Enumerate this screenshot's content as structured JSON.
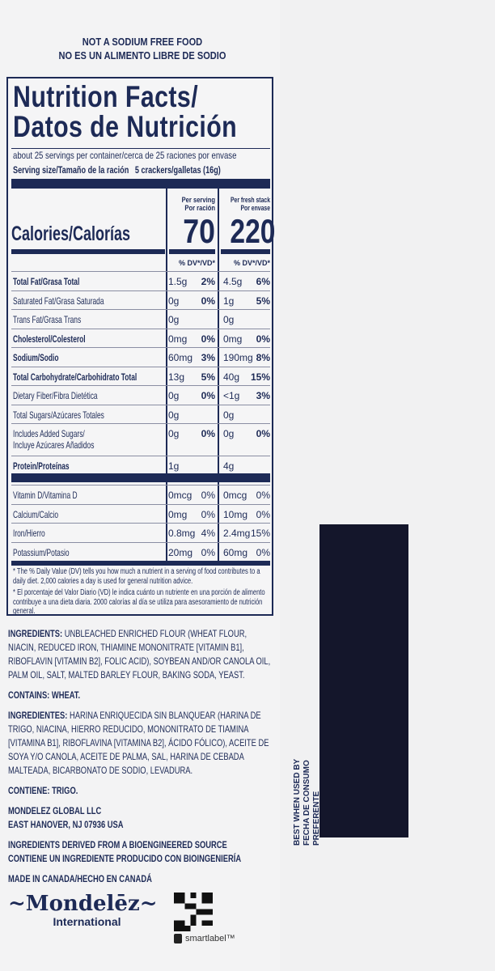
{
  "header": {
    "line1": "NOT A SODIUM FREE FOOD",
    "line2": "NO ES UN ALIMENTO LIBRE DE SODIO"
  },
  "label": {
    "title1": "Nutrition Facts/",
    "title2": "Datos de Nutrición",
    "servings": "about 25 servings per container/cerca de 25 raciones por envase",
    "serving_size_label": "Serving size/Tamaño de la ración",
    "serving_size_value": "5 crackers/galletas (16g)",
    "col1_head": "Per serving",
    "col1_head2": "Por ración",
    "col2_head": "Per fresh stack",
    "col2_head2": "Por envase",
    "calories_label": "Calories/Calorías",
    "calories1": "70",
    "calories2": "220",
    "dv_head": "% DV*/VD*",
    "rows": [
      {
        "name": "Total Fat/Grasa Total",
        "bold": true,
        "a1": "1.5g",
        "d1": "2%",
        "a2": "4.5g",
        "d2": "6%"
      },
      {
        "name": "Saturated Fat/Grasa Saturada",
        "a1": "0g",
        "d1": "0%",
        "a2": "1g",
        "d2": "5%"
      },
      {
        "name": "Trans Fat/Grasa Trans",
        "a1": "0g",
        "d1": "",
        "a2": "0g",
        "d2": ""
      },
      {
        "name": "Cholesterol/Colesterol",
        "bold": true,
        "a1": "0mg",
        "d1": "0%",
        "a2": "0mg",
        "d2": "0%"
      },
      {
        "name": "Sodium/Sodio",
        "bold": true,
        "a1": "60mg",
        "d1": "3%",
        "a2": "190mg",
        "d2": "8%"
      },
      {
        "name": "Total Carbohydrate/Carbohidrato Total",
        "bold": true,
        "a1": "13g",
        "d1": "5%",
        "a2": "40g",
        "d2": "15%"
      },
      {
        "name": "Dietary Fiber/Fibra Dietética",
        "a1": "0g",
        "d1": "0%",
        "a2": "<1g",
        "d2": "3%"
      },
      {
        "name": "Total Sugars/Azúcares Totales",
        "a1": "0g",
        "d1": "",
        "a2": "0g",
        "d2": ""
      },
      {
        "name": "Includes Added Sugars/",
        "name2": "Incluye Azúcares Añadidos",
        "a1": "0g",
        "d1": "0%",
        "a2": "0g",
        "d2": "0%"
      },
      {
        "name": "Protein/Proteínas",
        "bold": true,
        "a1": "1g",
        "d1": "",
        "a2": "4g",
        "d2": ""
      }
    ],
    "vitamins": [
      {
        "name": "Vitamin D/Vitamina D",
        "a1": "0mcg",
        "d1": "0%",
        "a2": "0mcg",
        "d2": "0%"
      },
      {
        "name": "Calcium/Calcio",
        "a1": "0mg",
        "d1": "0%",
        "a2": "10mg",
        "d2": "0%"
      },
      {
        "name": "Iron/Hierro",
        "a1": "0.8mg",
        "d1": "4%",
        "a2": "2.4mg",
        "d2": "15%"
      },
      {
        "name": "Potassium/Potasio",
        "a1": "20mg",
        "d1": "0%",
        "a2": "60mg",
        "d2": "0%"
      }
    ],
    "footnote_en": "* The % Daily Value (DV) tells you how much a nutrient in a serving of food contributes to a daily diet. 2,000 calories a day is used for general nutrition advice.",
    "footnote_es": "* El porcentaje del Valor Diario (VD) le indica cuánto un nutriente en una porción de alimento contribuye a una dieta diaria. 2000 calorías al día se utiliza para asesoramiento de nutrición general."
  },
  "ingredients": {
    "label": "INGREDIENTS:",
    "text": "UNBLEACHED ENRICHED FLOUR (WHEAT FLOUR, NIACIN, REDUCED IRON, THIAMINE MONONITRATE [VITAMIN B1], RIBOFLAVIN [VITAMIN B2], FOLIC ACID), SOYBEAN AND/OR CANOLA OIL, PALM OIL, SALT, MALTED BARLEY FLOUR, BAKING SODA, YEAST."
  },
  "contains": "CONTAINS: WHEAT.",
  "ingredientes": {
    "label": "INGREDIENTES:",
    "text": "HARINA ENRIQUECIDA SIN BLANQUEAR (HARINA DE TRIGO, NIACINA, HIERRO REDUCIDO, MONONITRATO DE TIAMINA [VITAMINA B1], RIBOFLAVINA [VITAMINA B2], ÁCIDO FÓLICO), ACEITE DE SOYA Y/O CANOLA, ACEITE DE PALMA, SAL, HARINA DE CEBADA MALTEADA, BICARBONATO DE SODIO, LEVADURA."
  },
  "contiene": "CONTIENE: TRIGO.",
  "company": {
    "line1": "MONDELEZ GLOBAL LLC",
    "line2": "EAST HANOVER, NJ 07936 USA"
  },
  "bioengineered": {
    "line1": "INGREDIENTS DERIVED FROM A BIOENGINEERED SOURCE",
    "line2": "CONTIENE UN INGREDIENTE PRODUCIDO CON BIOINGENIERÍA"
  },
  "made_in": "MADE IN CANADA/HECHO EN CANADÁ",
  "logo": {
    "name": "Mondelēz",
    "sub": "International"
  },
  "smartlabel": "smartlabel™",
  "best_by": {
    "line1": "BEST WHEN USED BY",
    "line2": "FECHA DE CONSUMO PREFERENTE"
  },
  "colors": {
    "navy": "#1d2a56",
    "date_box": "#14162b"
  }
}
